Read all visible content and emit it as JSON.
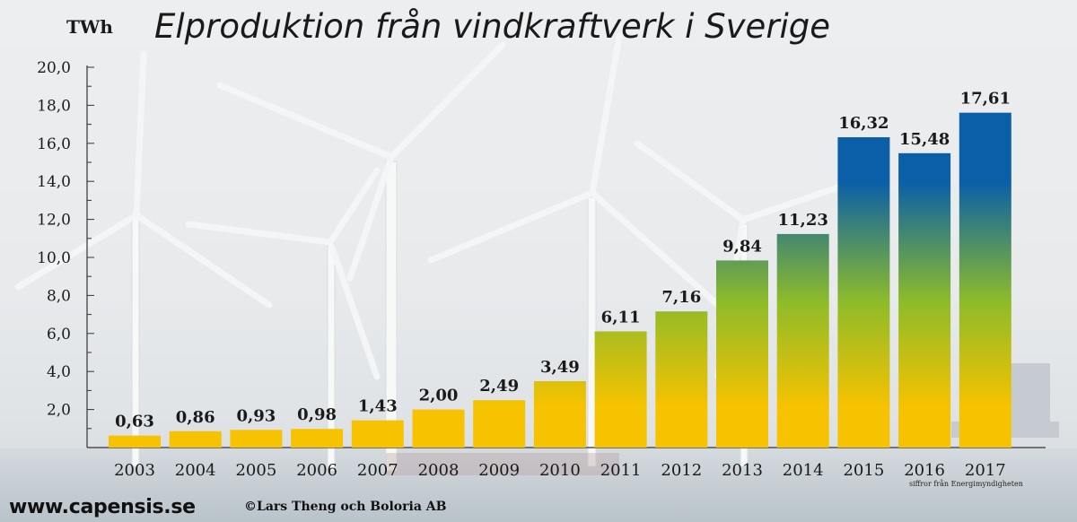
{
  "header": {
    "title": "Elproduktion från vindkraftverk i Sverige",
    "unit": "TWh"
  },
  "footer": {
    "website": "www.capensis.se",
    "copyright": "©Lars Theng och Boloria AB",
    "source_note": "siffror från Energimyndigheten"
  },
  "colors": {
    "bar_top": "#0a5fa8",
    "bar_mid": "#8dbb2a",
    "bar_bottom": "#f7c200",
    "text": "#1a1a1a"
  },
  "chart_data": {
    "type": "bar",
    "title": "Elproduktion från vindkraftverk i Sverige",
    "ylabel": "TWh",
    "xlabel": "",
    "categories": [
      "2003",
      "2004",
      "2005",
      "2006",
      "2007",
      "2008",
      "2009",
      "2010",
      "2011",
      "2012",
      "2013",
      "2014",
      "2015",
      "2016",
      "2017"
    ],
    "values": [
      0.63,
      0.86,
      0.93,
      0.98,
      1.43,
      2.0,
      2.49,
      3.49,
      6.11,
      7.16,
      9.84,
      11.23,
      16.32,
      15.48,
      17.61
    ],
    "value_labels": [
      "0,63",
      "0,86",
      "0,93",
      "0,98",
      "1,43",
      "2,00",
      "2,49",
      "3,49",
      "6,11",
      "7,16",
      "9,84",
      "11,23",
      "16,32",
      "15,48",
      "17,61"
    ],
    "y_ticks": [
      2,
      4,
      6,
      8,
      10,
      12,
      14,
      16,
      18,
      20
    ],
    "y_tick_labels": [
      "2,0",
      "4,0",
      "6,0",
      "8,0",
      "10,0",
      "12,0",
      "14,0",
      "16,0",
      "18,0",
      "20,0"
    ],
    "ylim": [
      0,
      20
    ],
    "grid": false,
    "legend": "none"
  }
}
